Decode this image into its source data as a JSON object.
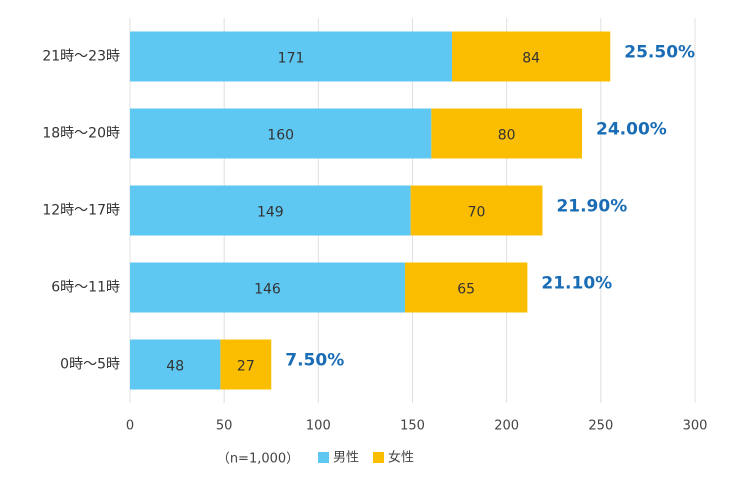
{
  "chart_data": {
    "type": "stacked-barh",
    "categories": [
      "21時〜23時",
      "18時〜20時",
      "12時〜17時",
      "6時〜11時",
      "0時〜5時"
    ],
    "series": [
      {
        "name": "男性",
        "color": "#5fc8f2",
        "values": [
          171,
          160,
          149,
          146,
          48
        ]
      },
      {
        "name": "女性",
        "color": "#fbbd00",
        "values": [
          84,
          80,
          70,
          65,
          27
        ]
      }
    ],
    "annotations": [
      "25.50%",
      "24.00%",
      "21.90%",
      "21.10%",
      "7.50%"
    ],
    "note": "（n=1,000）",
    "xlim": [
      0,
      300
    ],
    "xticks": [
      0,
      50,
      100,
      150,
      200,
      250,
      300
    ],
    "grid": true
  }
}
